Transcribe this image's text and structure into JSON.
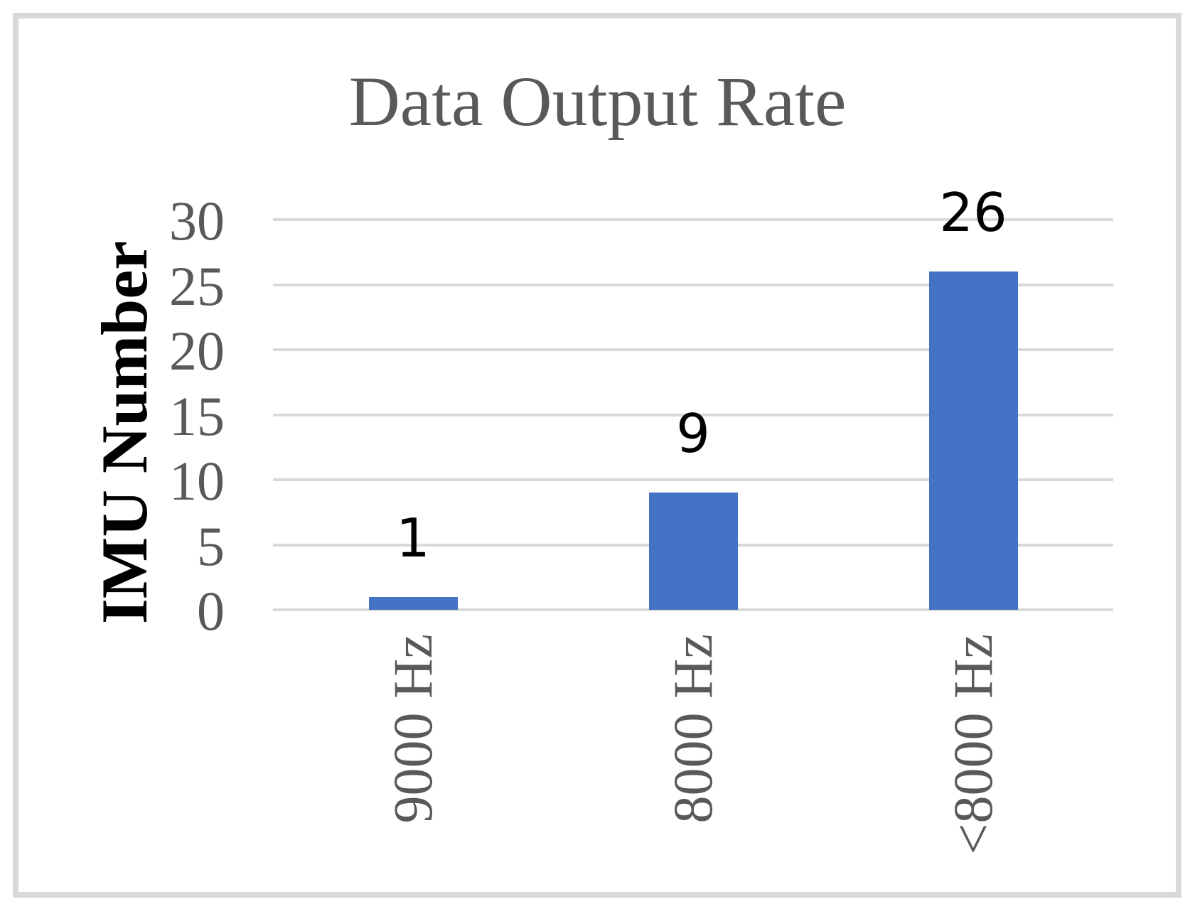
{
  "chart_data": {
    "type": "bar",
    "title": "Data Output Rate",
    "categories": [
      "9000 Hz",
      "8000 Hz",
      "<8000 Hz"
    ],
    "values": [
      1,
      9,
      26
    ],
    "data_labels": [
      "1",
      "9",
      "26"
    ],
    "xlabel": "",
    "ylabel": "IMU Number",
    "ylim": [
      0,
      30
    ],
    "y_ticks": [
      0,
      5,
      10,
      15,
      20,
      25,
      30
    ],
    "grid": true,
    "legend": false,
    "data_labels_shown": true,
    "colors": {
      "bar": "#4472C4",
      "gridline": "#D9D9D9",
      "axis_text": "#595959",
      "title_text": "#595959",
      "y_axis_title_text": "#000000",
      "data_label_text": "#000000",
      "chart_border": "#D9D9D9",
      "background": "#FFFFFF"
    }
  }
}
